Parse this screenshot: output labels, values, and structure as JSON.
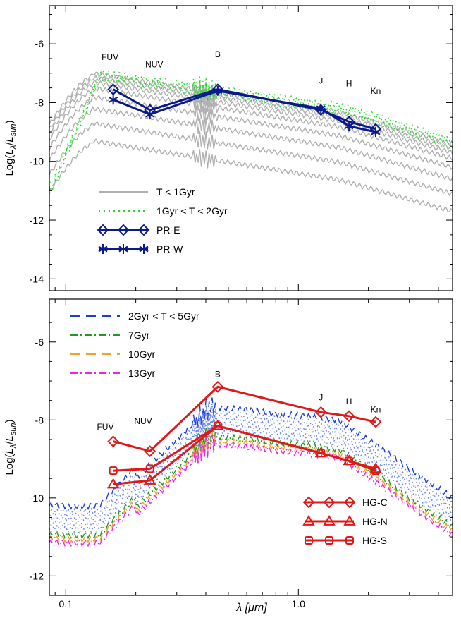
{
  "figure": {
    "xlabel": "λ [μm]"
  },
  "chart_data": [
    {
      "type": "line",
      "panel": "top",
      "ylabel": "Log(Lλ/Lsun)",
      "ylabel_parts": {
        "main": "Log(",
        "L": "L",
        "sub1": "λ",
        "slash": "/",
        "L2": "L",
        "sub2": "sun",
        "close": ")"
      },
      "x_scale": "log",
      "xlim": [
        0.085,
        4.6
      ],
      "ylim": [
        -14.4,
        -4.7
      ],
      "yticks": [
        -6,
        -8,
        -10,
        -12,
        -14
      ],
      "xticks": [
        0.1,
        1.0
      ],
      "xticklabels": [
        "0.1",
        "1.0"
      ],
      "band_labels": [
        {
          "text": "FUV",
          "x": 0.155,
          "y": -6.55
        },
        {
          "text": "NUV",
          "x": 0.24,
          "y": -6.8
        },
        {
          "text": "B",
          "x": 0.45,
          "y": -6.45
        },
        {
          "text": "J",
          "x": 1.25,
          "y": -7.35
        },
        {
          "text": "H",
          "x": 1.65,
          "y": -7.45
        },
        {
          "text": "Kn",
          "x": 2.15,
          "y": -7.7
        }
      ],
      "legend": [
        {
          "label": "T < 1Gyr",
          "style": "solid",
          "color": "#b0b0b0"
        },
        {
          "label": "1Gyr < T < 2Gyr",
          "style": "dotted",
          "color": "#22dd22"
        },
        {
          "label": "PR-E",
          "style": "diamond",
          "color": "#0a1a8c"
        },
        {
          "label": "PR-W",
          "style": "star",
          "color": "#0a1a8c"
        }
      ],
      "model_families": [
        {
          "name": "T < 1Gyr",
          "color": "#b0b0b0",
          "dash": "",
          "offsets": [
            0.0,
            0.15,
            0.3,
            0.5,
            0.8,
            1.2,
            1.7,
            2.3
          ],
          "base": "young"
        },
        {
          "name": "1Gyr < T < 2Gyr",
          "color": "#22dd22",
          "dash": "2 5",
          "offsets": [
            0.0,
            0.12,
            0.25
          ],
          "base": "mid"
        }
      ],
      "series": [
        {
          "name": "PR-E",
          "marker": "diamond",
          "color": "#0a1a8c",
          "x": [
            0.16,
            0.23,
            0.45,
            1.25,
            1.65,
            2.15
          ],
          "y": [
            -7.55,
            -8.25,
            -7.55,
            -8.25,
            -8.65,
            -8.9
          ]
        },
        {
          "name": "PR-W",
          "marker": "star",
          "color": "#0a1a8c",
          "x": [
            0.16,
            0.23,
            0.45,
            1.25,
            1.65,
            2.15
          ],
          "y": [
            -7.9,
            -8.4,
            -7.6,
            -8.2,
            -8.8,
            -9.0
          ]
        }
      ]
    },
    {
      "type": "line",
      "panel": "bottom",
      "ylabel": "Log(Lλ/Lsun)",
      "ylabel_parts": {
        "main": "Log(",
        "L": "L",
        "sub1": "λ",
        "slash": "/",
        "L2": "L",
        "sub2": "sun",
        "close": ")"
      },
      "x_scale": "log",
      "xlim": [
        0.085,
        4.6
      ],
      "ylim": [
        -12.5,
        -4.9
      ],
      "yticks": [
        -6,
        -8,
        -10,
        -12
      ],
      "xticks": [
        0.1,
        1.0
      ],
      "xticklabels": [
        "0.1",
        "1.0"
      ],
      "band_labels": [
        {
          "text": "FUV",
          "x": 0.148,
          "y": -8.25
        },
        {
          "text": "NUV",
          "x": 0.215,
          "y": -8.1
        },
        {
          "text": "B",
          "x": 0.45,
          "y": -6.9
        },
        {
          "text": "J",
          "x": 1.25,
          "y": -7.5
        },
        {
          "text": "H",
          "x": 1.65,
          "y": -7.6
        },
        {
          "text": "Kn",
          "x": 2.15,
          "y": -7.8
        }
      ],
      "legend": [
        {
          "label": "2Gyr < T < 5Gyr",
          "style": "longdash",
          "color": "#1a3ee0"
        },
        {
          "label": "7Gyr",
          "style": "dashdot",
          "color": "#1f9a1f"
        },
        {
          "label": "10Gyr",
          "style": "longdash",
          "color": "#f4a020"
        },
        {
          "label": "13Gyr",
          "style": "dashdot",
          "color": "#ee22ee"
        }
      ],
      "legend2": [
        {
          "label": "HG-C",
          "style": "diamond",
          "color": "#e01818"
        },
        {
          "label": "HG-N",
          "style": "triangle",
          "color": "#e01818"
        },
        {
          "label": "HG-S",
          "style": "square",
          "color": "#e01818"
        }
      ],
      "model_families": [
        {
          "name": "2Gyr < T < 5Gyr",
          "color": "#1a3ee0",
          "dash": "12 8",
          "offsets": [
            0.0
          ],
          "base": "old"
        },
        {
          "name": "2Gyr < T < 5Gyr (fill)",
          "color": "#6a86f0",
          "dash": "2 4",
          "offsets": [
            0.15,
            0.3,
            0.45,
            0.6
          ],
          "base": "old"
        },
        {
          "name": "7Gyr",
          "color": "#1f9a1f",
          "dash": "10 4 2 4",
          "offsets": [
            0.75
          ],
          "base": "old"
        },
        {
          "name": "10Gyr",
          "color": "#f4a020",
          "dash": "12 8",
          "offsets": [
            0.85
          ],
          "base": "old"
        },
        {
          "name": "13Gyr",
          "color": "#ee22ee",
          "dash": "10 4 2 4",
          "offsets": [
            0.95
          ],
          "base": "old"
        }
      ],
      "series": [
        {
          "name": "HG-C",
          "marker": "diamond",
          "color": "#e01818",
          "x": [
            0.16,
            0.23,
            0.45,
            1.25,
            1.65,
            2.15
          ],
          "y": [
            -8.55,
            -8.8,
            -7.15,
            -7.8,
            -7.9,
            -8.05
          ]
        },
        {
          "name": "HG-N",
          "marker": "triangle",
          "color": "#e01818",
          "x": [
            0.16,
            0.23,
            0.45,
            1.25,
            1.65,
            2.15
          ],
          "y": [
            -9.65,
            -9.55,
            -8.15,
            -8.85,
            -9.05,
            -9.25
          ]
        },
        {
          "name": "HG-S",
          "marker": "square",
          "color": "#e01818",
          "x": [
            0.16,
            0.23,
            0.45,
            1.25,
            1.65,
            2.15
          ],
          "y": [
            -9.3,
            -9.25,
            -8.15,
            -8.85,
            -9.05,
            -9.3
          ]
        }
      ]
    }
  ]
}
